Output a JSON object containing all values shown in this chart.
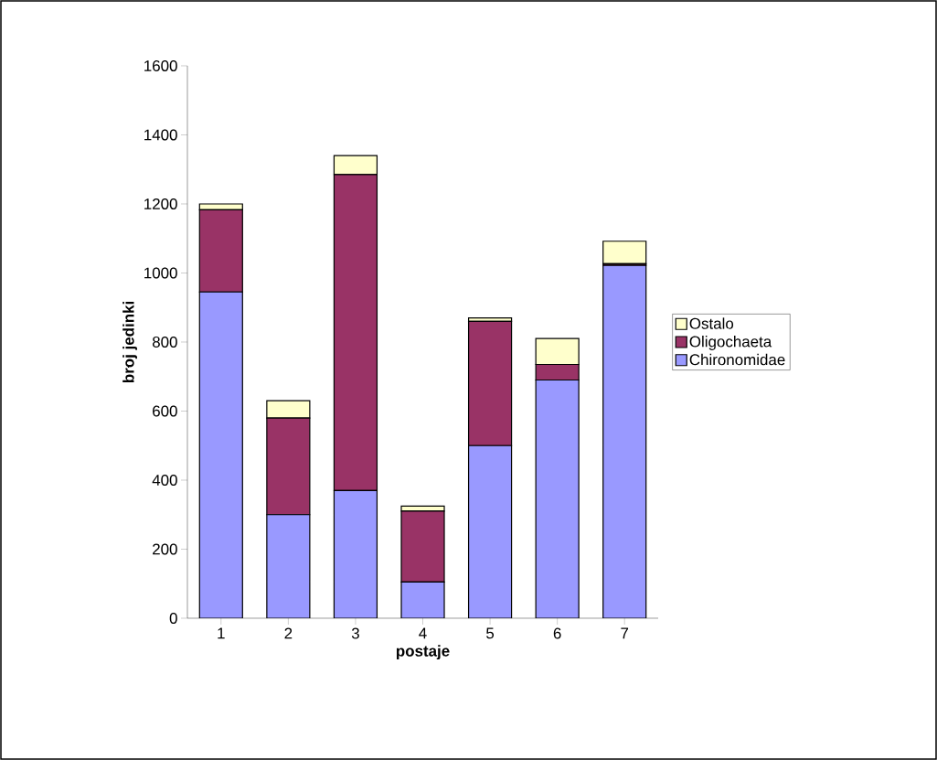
{
  "chart_data": {
    "type": "bar",
    "stacked": true,
    "xlabel": "postaje",
    "ylabel": "broj jedinki",
    "categories": [
      "1",
      "2",
      "3",
      "4",
      "5",
      "6",
      "7"
    ],
    "series": [
      {
        "name": "Chironomidae",
        "color": "#9999ff",
        "values": [
          945,
          300,
          370,
          105,
          500,
          690,
          1022
        ]
      },
      {
        "name": "Oligochaeta",
        "color": "#993366",
        "values": [
          238,
          280,
          915,
          205,
          360,
          45,
          5
        ]
      },
      {
        "name": "Ostalo",
        "color": "#ffffcc",
        "values": [
          17,
          50,
          55,
          15,
          10,
          75,
          65
        ]
      }
    ],
    "ylim": [
      0,
      1600
    ],
    "yticks": [
      0,
      200,
      400,
      600,
      800,
      1000,
      1200,
      1400,
      1600
    ],
    "legend": "right",
    "grid": false
  }
}
